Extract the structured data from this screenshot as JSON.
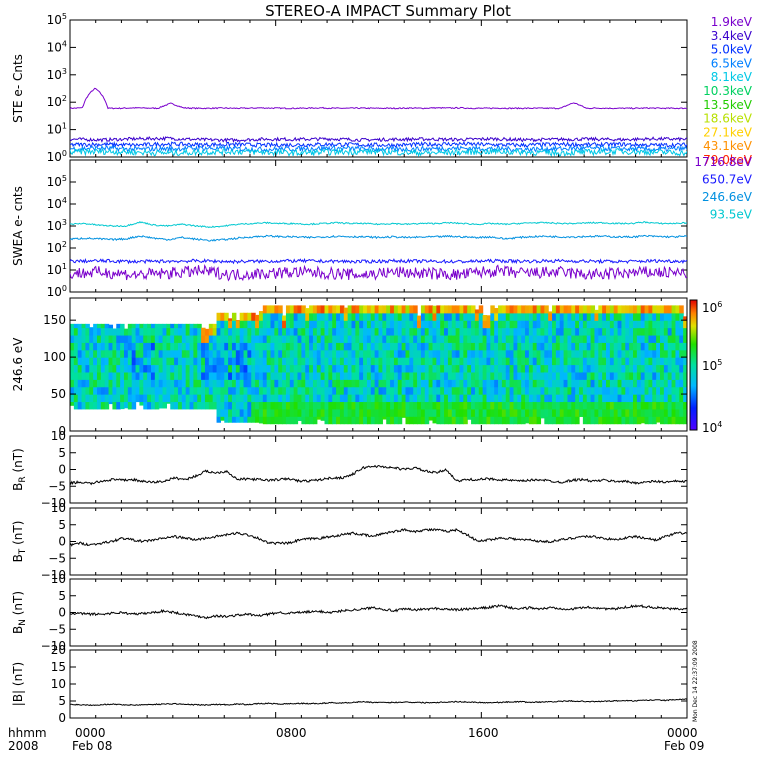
{
  "title": "STEREO-A IMPACT Summary Plot",
  "footer": {
    "corner_top": "hhmm",
    "corner_bottom": "2008",
    "x_ticks": [
      "0000",
      "0800",
      "1600",
      "0000"
    ],
    "x_dates": [
      "Feb 08",
      "Feb 09"
    ],
    "timestamp": "Mon Dec 14 22:37:09 2008"
  },
  "legend_ste": [
    {
      "label": "1.9keV",
      "color": "#7a00cc"
    },
    {
      "label": "3.4keV",
      "color": "#3a00cc"
    },
    {
      "label": "5.0keV",
      "color": "#0030ff"
    },
    {
      "label": "6.5keV",
      "color": "#0080ff"
    },
    {
      "label": "8.1keV",
      "color": "#00c8e6"
    },
    {
      "label": "10.3keV",
      "color": "#00d060"
    },
    {
      "label": "13.5keV",
      "color": "#22cc00"
    },
    {
      "label": "18.6keV",
      "color": "#b8e000"
    },
    {
      "label": "27.1keV",
      "color": "#ffd000"
    },
    {
      "label": "43.1keV",
      "color": "#ff9000"
    },
    {
      "label": "79.0keV",
      "color": "#ff2000"
    }
  ],
  "legend_swea": [
    {
      "label": "1716.8eV",
      "color": "#7a00cc"
    },
    {
      "label": "650.7eV",
      "color": "#1a1aff"
    },
    {
      "label": "246.6eV",
      "color": "#0090e0"
    },
    {
      "label": "93.5eV",
      "color": "#00c8d0"
    }
  ],
  "colorbar": {
    "labels": [
      "10",
      "10",
      "10"
    ],
    "exps": [
      "6",
      "5",
      "4"
    ]
  },
  "chart_data": [
    {
      "type": "line",
      "ylabel": "STE e- Cnts",
      "scale": "log",
      "ylim": [
        1,
        100000
      ],
      "y_ticks": [
        "10",
        "10",
        "10",
        "10",
        "10",
        "10"
      ],
      "y_exps": [
        "0",
        "1",
        "2",
        "3",
        "4",
        "5"
      ],
      "x_range_hours": [
        0,
        24
      ],
      "series": [
        {
          "name": "1.9keV",
          "color": "#7a00cc",
          "values": [
            60,
            62,
            320,
            60,
            60,
            62,
            61,
            60,
            90,
            62,
            60,
            60,
            61,
            60,
            60,
            62,
            61,
            60,
            60,
            61,
            62,
            60,
            60,
            61,
            60,
            60,
            60,
            61,
            60,
            62,
            61,
            62,
            60,
            60,
            61,
            60,
            60,
            60,
            60,
            60,
            95,
            60,
            61,
            60,
            60,
            60,
            61,
            60,
            60,
            60
          ]
        },
        {
          "name": "3.4keV",
          "color": "#3a00cc",
          "values": [
            4.5,
            4.2,
            4.6,
            4.8,
            4.3,
            4.1,
            4.5,
            4.4,
            4.6,
            4.2,
            4.4,
            4.5,
            4.3,
            4.6,
            4.2,
            4.4,
            4.5,
            4.3,
            4.6,
            4.4
          ]
        },
        {
          "name": "5.0keV",
          "color": "#0030ff",
          "values": [
            2.8,
            2.9,
            2.7,
            3.0,
            2.8,
            2.9,
            2.7,
            2.8,
            2.9,
            2.8,
            2.7,
            2.9,
            3.0,
            2.8,
            2.7,
            2.9,
            2.8,
            2.9,
            2.7,
            2.8
          ]
        },
        {
          "name": "6.5keV",
          "color": "#0080ff",
          "values": [
            2.0,
            2.1,
            1.9,
            2.0,
            2.1,
            2.0,
            1.9,
            2.0,
            2.1,
            2.0,
            1.9,
            2.0,
            2.1,
            2.0,
            1.9,
            2.0,
            2.1,
            2.0,
            1.9,
            2.0
          ]
        },
        {
          "name": "8.1keV",
          "color": "#00c8e6",
          "values": [
            1.5,
            1.6,
            1.5,
            1.4,
            1.5,
            1.6,
            1.5,
            1.4,
            1.5,
            1.6,
            1.5,
            1.4,
            1.5,
            1.6,
            1.5,
            1.4,
            1.5,
            1.6,
            1.5,
            1.4
          ]
        }
      ]
    },
    {
      "type": "line",
      "ylabel": "SWEA e- cnts",
      "scale": "log",
      "ylim": [
        1,
        1000000
      ],
      "y_ticks": [
        "10",
        "10",
        "10",
        "10",
        "10",
        "10"
      ],
      "y_exps": [
        "0",
        "1",
        "2",
        "3",
        "4",
        "5"
      ],
      "x_range_hours": [
        0,
        24
      ],
      "series": [
        {
          "name": "93.5eV",
          "color": "#00c8d0",
          "values": [
            1200,
            1300,
            1100,
            1000,
            1000,
            1500,
            1100,
            1000,
            1200,
            1000,
            900,
            1000,
            1200,
            1300,
            1400,
            1300,
            1300,
            1200,
            1300,
            1400,
            1300,
            1300,
            1200,
            1300,
            1200,
            1300,
            1300,
            1400,
            1300,
            1200,
            1300,
            1200,
            1300,
            1400,
            1400,
            1300,
            1300,
            1400,
            1400,
            1300,
            1300,
            1500,
            1300,
            1300,
            1400
          ]
        },
        {
          "name": "246.6eV",
          "color": "#0090e0",
          "values": [
            250,
            280,
            260,
            240,
            260,
            350,
            280,
            240,
            300,
            250,
            220,
            240,
            280,
            320,
            350,
            330,
            320,
            300,
            320,
            340,
            330,
            320,
            300,
            320,
            300,
            310,
            320,
            340,
            320,
            300,
            320,
            260,
            300,
            330,
            340,
            320,
            320,
            340,
            340,
            320,
            320,
            350,
            330,
            320,
            340
          ]
        },
        {
          "name": "650.7eV",
          "color": "#1a1aff",
          "values": [
            25,
            26,
            24,
            25,
            26,
            24,
            25,
            26,
            25,
            24,
            26,
            25,
            24,
            26,
            25,
            26,
            25,
            24,
            26,
            25
          ]
        },
        {
          "name": "1716.8eV",
          "color": "#7a00cc",
          "values": [
            7,
            8,
            6,
            7,
            9,
            6,
            7,
            8,
            7,
            6,
            8,
            7,
            6,
            9,
            7,
            8,
            6,
            7,
            8,
            7
          ]
        }
      ]
    },
    {
      "type": "heatmap",
      "ylabel": "246.6 eV",
      "ylim": [
        0,
        180
      ],
      "y_ticks": [
        "0",
        "50",
        "100",
        "150"
      ],
      "x_range_hours": [
        0,
        24
      ],
      "color_range": [
        10000,
        1000000
      ],
      "color_scale": "log"
    },
    {
      "type": "line",
      "ylabel": "B_R (nT)",
      "label_main": "B",
      "label_sub": "R",
      "label_unit": "(nT)",
      "ylim": [
        -10,
        10
      ],
      "y_ticks": [
        "10",
        "5",
        "0",
        "−5",
        "−10"
      ],
      "x_range_hours": [
        0,
        24
      ],
      "series": [
        {
          "name": "",
          "color": "#000000",
          "values": [
            -4,
            -3.8,
            -4.2,
            -3.5,
            -3,
            -3.2,
            -3,
            -3.6,
            -3.8,
            -3.5,
            -2.5,
            -3,
            -2,
            -0.5,
            -1,
            -0.5,
            -3,
            -2.8,
            -3,
            -3.2,
            -3,
            -2.8,
            -3.5,
            -3.4,
            -3,
            -2.5,
            -2.5,
            -1.5,
            0.5,
            1,
            0.8,
            0.5,
            0,
            0.5,
            -0.5,
            -1,
            0,
            -3.5,
            -3,
            -3,
            -2.8,
            -3,
            -3.2,
            -3.5,
            -3.2,
            -3,
            -3.5,
            -3.8,
            -3.2,
            -3,
            -3.5,
            -3.2,
            -3.5,
            -3.5,
            -4,
            -3.8,
            -3.5,
            -3.8,
            -3.5,
            -3.6
          ]
        }
      ]
    },
    {
      "type": "line",
      "ylabel": "B_T (nT)",
      "label_main": "B",
      "label_sub": "T",
      "label_unit": "(nT)",
      "ylim": [
        -10,
        10
      ],
      "y_ticks": [
        "10",
        "5",
        "0",
        "−5",
        "−10"
      ],
      "x_range_hours": [
        0,
        24
      ],
      "series": [
        {
          "name": "",
          "color": "#000000",
          "values": [
            -1,
            -0.5,
            -1,
            -0.5,
            0,
            1,
            0.5,
            0,
            0.5,
            1,
            1.5,
            1,
            0.5,
            1,
            1.5,
            2,
            2.5,
            2,
            1,
            -0.5,
            -0.5,
            -0.5,
            0.5,
            0.8,
            1,
            1.5,
            2,
            2.5,
            2,
            1.5,
            2.5,
            3,
            3.5,
            3,
            3.5,
            3.5,
            3,
            3.5,
            2,
            0,
            0.5,
            1,
            1,
            0.5,
            0.5,
            0,
            0,
            0.5,
            1,
            1.5,
            1.5,
            1,
            0.5,
            1,
            1.5,
            1,
            0.5,
            1.5,
            2.5,
            2.5
          ]
        }
      ]
    },
    {
      "type": "line",
      "ylabel": "B_N (nT)",
      "label_main": "B",
      "label_sub": "N",
      "label_unit": "(nT)",
      "ylim": [
        -10,
        10
      ],
      "y_ticks": [
        "10",
        "5",
        "0",
        "−5",
        "−10"
      ],
      "x_range_hours": [
        0,
        24
      ],
      "series": [
        {
          "name": "",
          "color": "#000000",
          "values": [
            -0.5,
            -0.3,
            -0.5,
            -0.5,
            -0.2,
            0,
            -0.5,
            -0.3,
            0,
            0.5,
            0,
            -0.5,
            -1,
            -1.5,
            -1,
            -1.2,
            -0.8,
            -0.5,
            -1,
            -0.5,
            0,
            -0.2,
            0,
            0.2,
            0.3,
            0,
            0.5,
            0.8,
            1,
            1.5,
            1,
            0.5,
            1,
            0.8,
            1,
            1.2,
            1,
            0.8,
            1,
            1.2,
            1.5,
            2,
            1.5,
            1,
            1.5,
            1,
            1.5,
            1.2,
            1,
            1.5,
            1.5,
            1.2,
            1,
            1.5,
            2,
            1.8,
            1.5,
            1.2,
            1,
            1
          ]
        }
      ]
    },
    {
      "type": "line",
      "ylabel": "|B| (nT)",
      "ylim": [
        0,
        20
      ],
      "y_ticks": [
        "20",
        "15",
        "10",
        "5",
        "0"
      ],
      "x_range_hours": [
        0,
        24
      ],
      "series": [
        {
          "name": "",
          "color": "#000000",
          "values": [
            4,
            3.9,
            3.8,
            3.9,
            4.1,
            3.9,
            3.8,
            3.9,
            4,
            4.1,
            4.2,
            4,
            3.9,
            3.8,
            4,
            3.9,
            4.1,
            4,
            4.2,
            4.3,
            4.1,
            4.2,
            4.3,
            4.2,
            4.3,
            4.5,
            4.4,
            4.6,
            4.8,
            4.6,
            4.5,
            4.6,
            4.7,
            4.6,
            4.5,
            4.6,
            4.7,
            4.8,
            4.7,
            4.6,
            4.5,
            4.6,
            4.7,
            4.8,
            4.6,
            4.7,
            4.8,
            4.9,
            5,
            4.9,
            4.8,
            4.9,
            5,
            5.1,
            5,
            5.2,
            5.3,
            5.2,
            5.4,
            5.5
          ]
        }
      ]
    }
  ]
}
